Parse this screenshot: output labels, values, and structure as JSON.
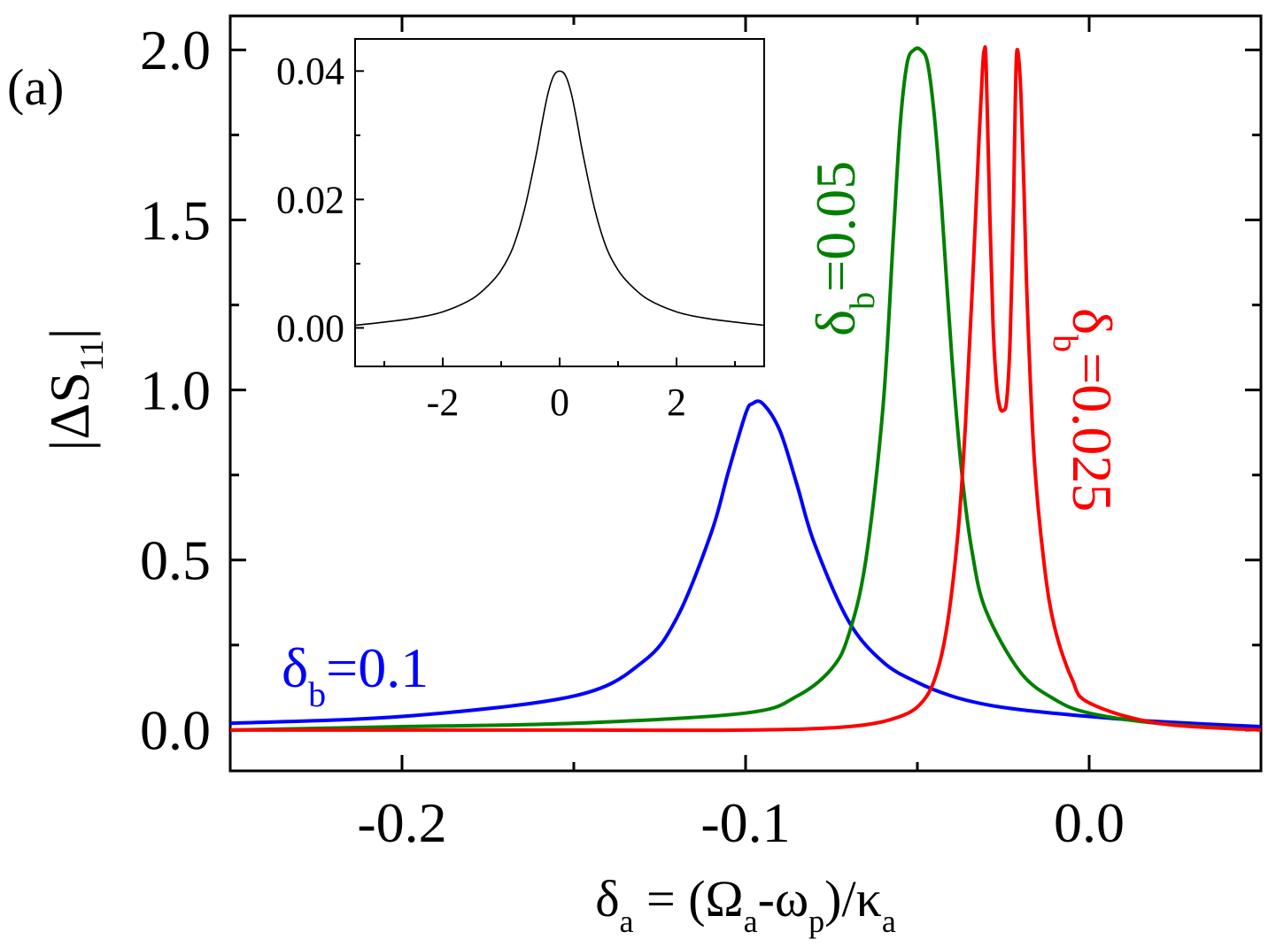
{
  "chart_data": [
    {
      "type": "line",
      "panel_label": "(a)",
      "xlabel": {
        "delta": "δ",
        "delta_sub": "a",
        "eq": " = (",
        "omega": "Ω",
        "omega_sub": "a",
        "dash_omega": "-ω",
        "p_sub": "p",
        "close": ")/",
        "kappa": "κ",
        "kappa_sub": "a"
      },
      "ylabel": {
        "main": "|ΔS",
        "sub": "11",
        "close": "|"
      },
      "xlim": [
        -0.25,
        0.05
      ],
      "ylim": [
        -0.12,
        2.1
      ],
      "x_ticks": [
        -0.2,
        -0.1,
        0.0
      ],
      "x_tick_labels": [
        "-0.2",
        "-0.1",
        "0.0"
      ],
      "x_minor_ticks": [
        -0.25,
        -0.15,
        -0.05,
        0.05
      ],
      "y_ticks": [
        0.0,
        0.5,
        1.0,
        1.5,
        2.0
      ],
      "y_tick_labels": [
        "0.0",
        "0.5",
        "1.0",
        "1.5",
        "2.0"
      ],
      "y_minor_ticks": [
        0.25,
        0.75,
        1.25,
        1.75
      ],
      "series": [
        {
          "name": "δb=0.1",
          "color": "#0000ff",
          "x": [
            -0.25,
            -0.2,
            -0.15,
            -0.13,
            -0.12,
            -0.11,
            -0.105,
            -0.1,
            -0.098,
            -0.095,
            -0.09,
            -0.085,
            -0.08,
            -0.07,
            -0.06,
            -0.05,
            -0.04,
            -0.03,
            -0.02,
            0.0,
            0.02,
            0.05
          ],
          "y": [
            0.02,
            0.04,
            0.1,
            0.2,
            0.33,
            0.58,
            0.76,
            0.93,
            0.96,
            0.96,
            0.88,
            0.72,
            0.55,
            0.32,
            0.2,
            0.14,
            0.1,
            0.075,
            0.06,
            0.04,
            0.025,
            0.01
          ]
        },
        {
          "name": "δb=0.05",
          "color": "#008000",
          "x": [
            -0.25,
            -0.2,
            -0.15,
            -0.1,
            -0.085,
            -0.075,
            -0.07,
            -0.065,
            -0.06,
            -0.057,
            -0.055,
            -0.053,
            -0.051,
            -0.049,
            -0.047,
            -0.045,
            -0.043,
            -0.04,
            -0.037,
            -0.034,
            -0.03,
            -0.02,
            -0.01,
            0.0,
            0.02,
            0.05
          ],
          "y": [
            0.0,
            0.01,
            0.02,
            0.05,
            0.1,
            0.18,
            0.28,
            0.5,
            0.95,
            1.45,
            1.78,
            1.96,
            2.0,
            2.0,
            1.96,
            1.8,
            1.55,
            1.1,
            0.75,
            0.52,
            0.35,
            0.17,
            0.09,
            0.05,
            0.02,
            0.0
          ]
        },
        {
          "name": "δb=0.025",
          "color": "#ff0000",
          "x": [
            -0.25,
            -0.15,
            -0.1,
            -0.07,
            -0.055,
            -0.048,
            -0.044,
            -0.041,
            -0.038,
            -0.036,
            -0.034,
            -0.032,
            -0.031,
            -0.0305,
            -0.03,
            -0.029,
            -0.028,
            -0.027,
            -0.026,
            -0.025,
            -0.024,
            -0.023,
            -0.022,
            -0.0215,
            -0.021,
            -0.02,
            -0.019,
            -0.018,
            -0.016,
            -0.013,
            -0.01,
            -0.005,
            0.0,
            0.02,
            0.05
          ],
          "y": [
            0.0,
            0.0,
            0.0,
            0.01,
            0.04,
            0.09,
            0.18,
            0.33,
            0.6,
            0.9,
            1.3,
            1.75,
            1.95,
            2.0,
            1.96,
            1.55,
            1.2,
            1.02,
            0.95,
            0.94,
            0.97,
            1.15,
            1.55,
            1.85,
            2.0,
            1.9,
            1.6,
            1.25,
            0.8,
            0.48,
            0.3,
            0.15,
            0.08,
            0.02,
            0.0
          ]
        }
      ],
      "annotations": [
        {
          "series": "δb=0.1",
          "symbol": "δ",
          "sub": "b",
          "value": "=0.1",
          "color": "#0000ff"
        },
        {
          "series": "δb=0.05",
          "symbol": "δ",
          "sub": "b",
          "value": "=0.05",
          "color": "#008000"
        },
        {
          "series": "δb=0.025",
          "symbol": "δ",
          "sub": "b",
          "value": "=0.025",
          "color": "#ff0000"
        }
      ]
    },
    {
      "type": "line",
      "role": "inset",
      "xlim": [
        -3.5,
        3.5
      ],
      "ylim": [
        -0.006,
        0.045
      ],
      "x_ticks": [
        -2,
        0,
        2
      ],
      "x_tick_labels": [
        "-2",
        "0",
        "2"
      ],
      "x_minor_ticks": [
        -3,
        -1,
        1,
        3
      ],
      "y_ticks": [
        0.0,
        0.02,
        0.04
      ],
      "y_tick_labels": [
        "0.00",
        "0.02",
        "0.04"
      ],
      "y_minor_ticks": [
        0.01,
        0.03
      ],
      "series": [
        {
          "name": "inset",
          "color": "#000000",
          "x": [
            -3.5,
            -3,
            -2.5,
            -2,
            -1.5,
            -1.2,
            -1,
            -0.8,
            -0.6,
            -0.4,
            -0.3,
            -0.2,
            -0.1,
            0,
            0.1,
            0.2,
            0.3,
            0.4,
            0.6,
            0.8,
            1,
            1.2,
            1.5,
            2,
            2.5,
            3,
            3.5
          ],
          "y": [
            0.0004,
            0.0009,
            0.0015,
            0.0025,
            0.0045,
            0.0068,
            0.009,
            0.0125,
            0.0185,
            0.027,
            0.032,
            0.0365,
            0.0393,
            0.04,
            0.0393,
            0.0365,
            0.032,
            0.027,
            0.0185,
            0.0125,
            0.009,
            0.0068,
            0.0045,
            0.0025,
            0.0015,
            0.0009,
            0.0004
          ]
        }
      ]
    }
  ]
}
